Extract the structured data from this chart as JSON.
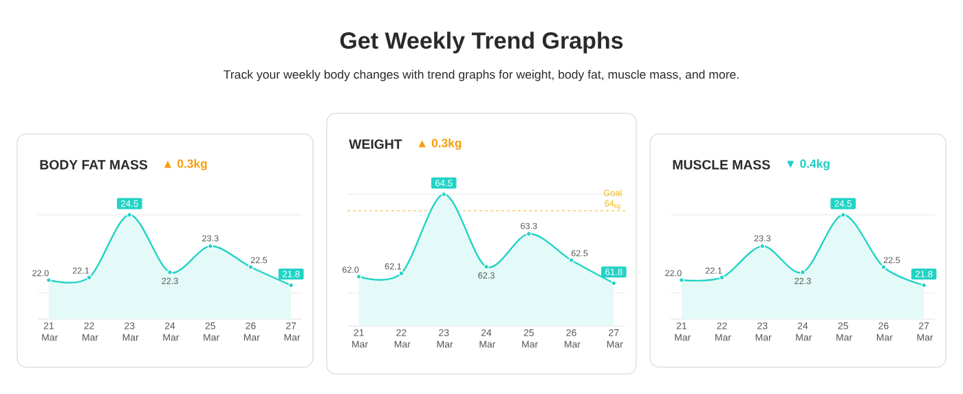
{
  "chart_data": [
    {
      "type": "other",
      "title": "Get Weekly Trend Graphs",
      "subtitle": "Track your weekly body changes with trend graphs for weight, body fat, muscle mass, and more."
    },
    {
      "type": "area",
      "title": "BODY FAT MASS",
      "subtitle": "▲ 0.3kg",
      "categories": [
        "21 Mar",
        "22 Mar",
        "23 Mar",
        "24 Mar",
        "25 Mar",
        "26 Mar",
        "27 Mar"
      ],
      "series": [
        {
          "color": "#22D3C5",
          "values": [
            22.0,
            22.1,
            24.5,
            22.3,
            23.3,
            22.5,
            21.8
          ],
          "value_labels": [
            "22.0",
            "22.1",
            "24.5",
            "22.3",
            "23.3",
            "22.5",
            "21.8"
          ]
        }
      ],
      "ylim": [
        20.5,
        24.5
      ],
      "yticks": [
        {
          "value": 21.5,
          "label": null
        },
        {
          "value": 24.5,
          "label": null
        }
      ],
      "marker": "circle",
      "grid": "y",
      "tick_labels": "x"
    },
    {
      "type": "area",
      "title": "WEIGHT",
      "subtitle": "▲ 0.3kg",
      "categories": [
        "21 Mar",
        "22 Mar",
        "23 Mar",
        "24 Mar",
        "25 Mar",
        "26 Mar",
        "27 Mar"
      ],
      "series": [
        {
          "color": "#22D3C5",
          "values": [
            62.0,
            62.1,
            64.5,
            62.3,
            63.3,
            62.5,
            61.8
          ],
          "value_labels": [
            "62.0",
            "62.1",
            "64.5",
            "62.3",
            "63.3",
            "62.5",
            "61.8"
          ]
        }
      ],
      "ylim": [
        60.5,
        64.5
      ],
      "yticks": [
        {
          "value": 61.5,
          "label": null
        },
        {
          "value": 64.5,
          "label": null
        }
      ],
      "ref_lines": [
        {
          "axis": "y",
          "value": 64,
          "label": "Goal 64$_{kg}$",
          "color": "#F5B914",
          "line_style": "dashed"
        }
      ],
      "marker": "circle",
      "grid": "y",
      "tick_labels": "x"
    },
    {
      "type": "area",
      "title": "MUSCLE MASS",
      "subtitle": "▼ 0.4kg",
      "categories": [
        "21 Mar",
        "22 Mar",
        "23 Mar",
        "24 Mar",
        "25 Mar",
        "26 Mar",
        "27 Mar"
      ],
      "series": [
        {
          "color": "#22D3C5",
          "values": [
            22.0,
            22.1,
            23.3,
            22.3,
            24.5,
            22.5,
            21.8
          ],
          "value_labels": [
            "22.0",
            "22.1",
            "23.3",
            "22.3",
            "24.5",
            "22.5",
            "21.8"
          ]
        }
      ],
      "ylim": [
        20.5,
        24.5
      ],
      "yticks": [
        {
          "value": 21.5,
          "label": null
        },
        {
          "value": 24.5,
          "label": null
        }
      ],
      "marker": "circle",
      "grid": "y",
      "tick_labels": "x"
    }
  ]
}
